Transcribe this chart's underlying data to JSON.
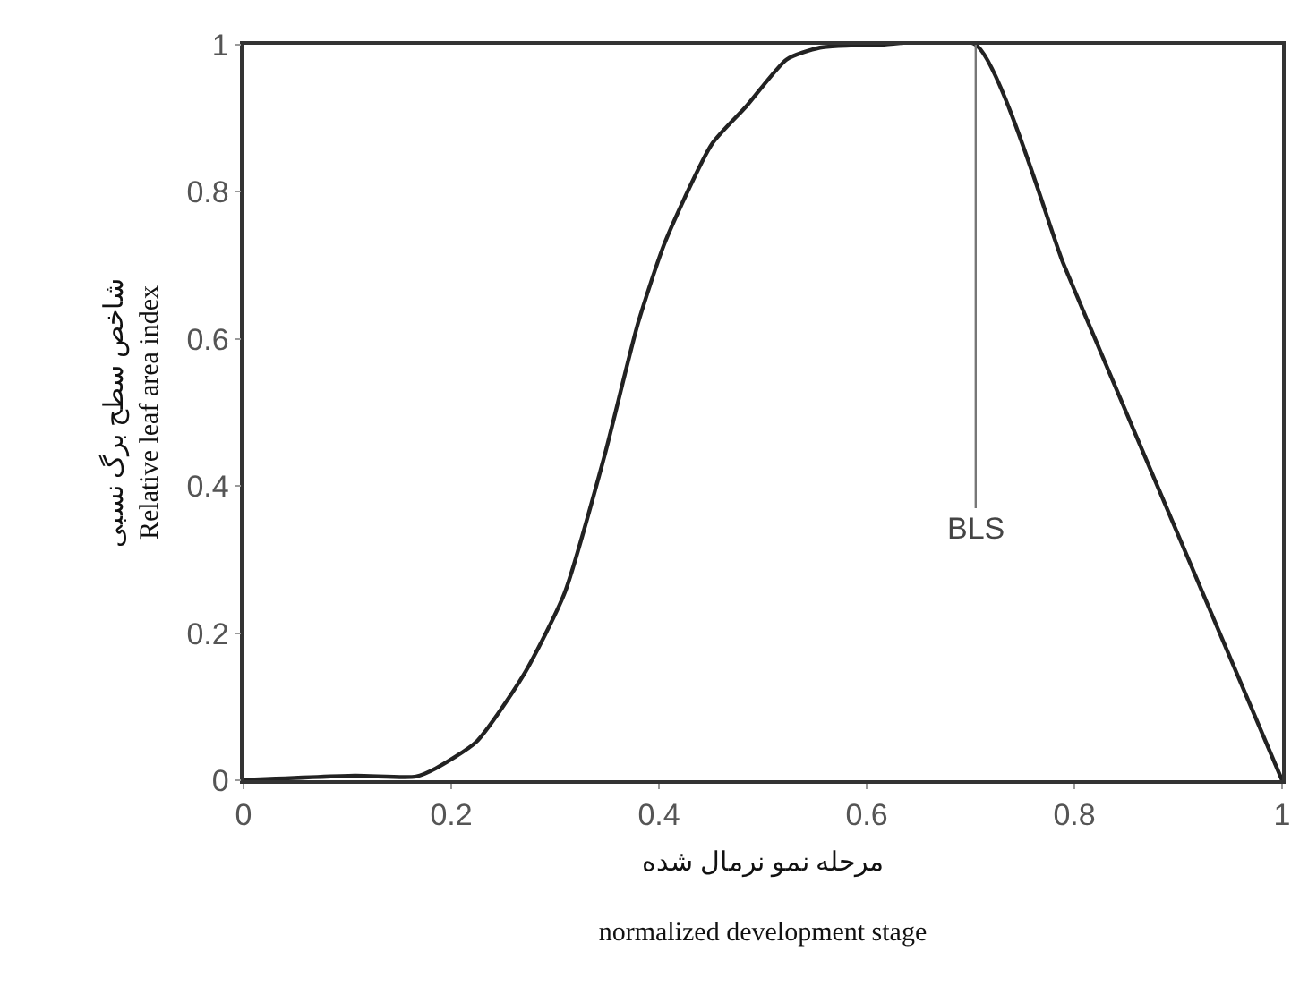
{
  "chart_data": {
    "type": "line",
    "xlabel": "مرحله نمو نرمال شده\n\nnormalized development stage",
    "ylabel": "شاخص سطح برگ نسبی\nRelative leaf area index",
    "x": [
      0,
      0.107,
      0.166,
      0.185,
      0.224,
      0.27,
      0.309,
      0.347,
      0.38,
      0.406,
      0.451,
      0.484,
      0.523,
      0.555,
      0.614,
      0.705,
      0.789,
      0.808,
      1
    ],
    "series": [
      {
        "color": "#222222",
        "values": [
          0,
          0.006,
          0.005,
          0.016,
          0.052,
          0.144,
          0.254,
          0.438,
          0.622,
          0.732,
          0.865,
          0.916,
          0.98,
          0.996,
          1,
          1,
          0.704,
          0.64,
          0
        ]
      }
    ],
    "xlim": [
      0,
      1
    ],
    "ylim": [
      0,
      1
    ],
    "xticks": [
      0,
      0.2,
      0.4,
      0.6,
      0.8,
      1
    ],
    "yticks": [
      0,
      0.2,
      0.4,
      0.6,
      0.8,
      1
    ],
    "annotations": [
      {
        "text": "BLS",
        "x": 0.705,
        "y": 1
      }
    ],
    "grid": false,
    "marker": "none",
    "line_style": "solid"
  }
}
